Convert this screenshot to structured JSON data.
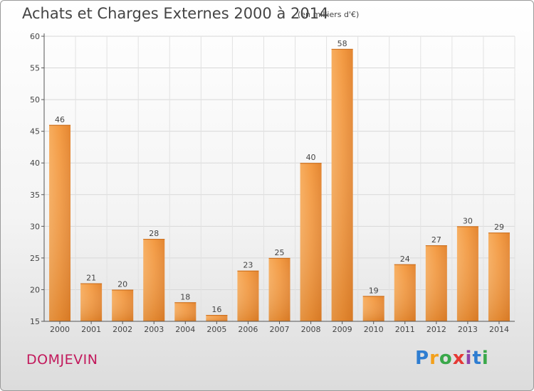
{
  "header": {
    "title": "Achats et Charges Externes 2000 à 2014",
    "unit": "(en milliers d'€)"
  },
  "footer": {
    "place": "DOMJEVIN",
    "logo": "Proxiti"
  },
  "colors": {
    "bar_light": "#f6a24c",
    "bar_dark": "#d9731b",
    "axis": "#555555",
    "grid": "#dddddd",
    "text": "#444444",
    "place": "#c2185b"
  },
  "chart_data": {
    "type": "bar",
    "categories": [
      "2000",
      "2001",
      "2002",
      "2003",
      "2004",
      "2005",
      "2006",
      "2007",
      "2008",
      "2009",
      "2010",
      "2011",
      "2012",
      "2013",
      "2014"
    ],
    "values": [
      46,
      21,
      20,
      28,
      18,
      16,
      23,
      25,
      40,
      58,
      19,
      24,
      27,
      30,
      29
    ],
    "ylim": [
      15,
      60
    ],
    "yticks": [
      15,
      20,
      25,
      30,
      35,
      40,
      45,
      50,
      55,
      60
    ],
    "grid": true,
    "data_labels": true
  }
}
